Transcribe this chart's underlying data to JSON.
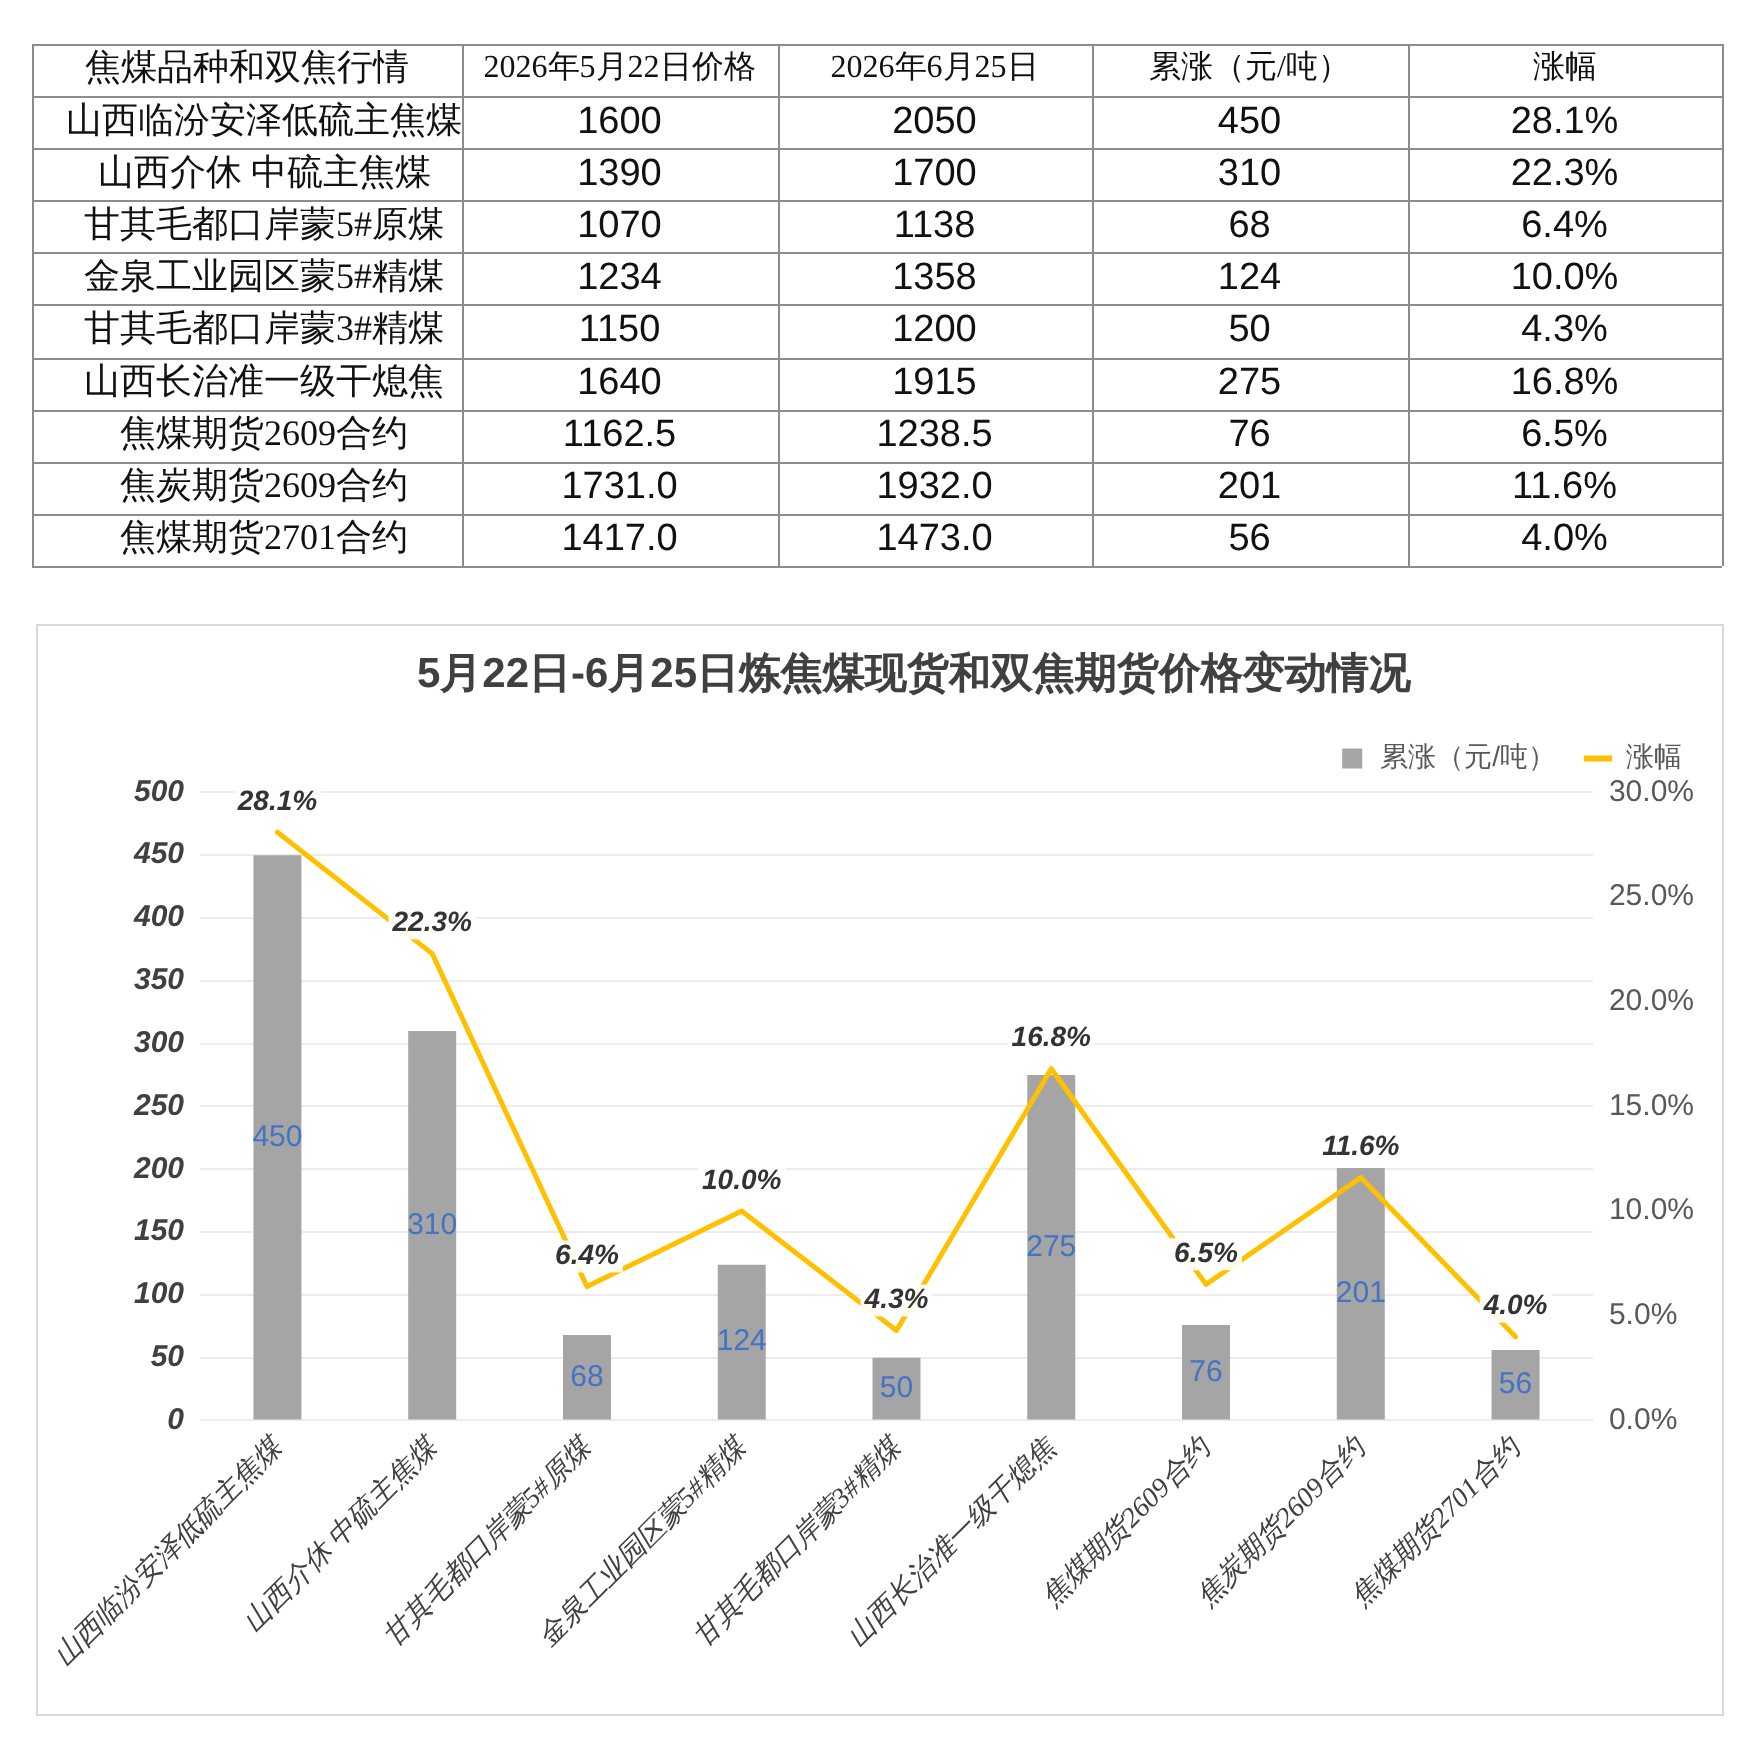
{
  "chart_data": [
    {
      "type": "heatmap",
      "ylabel": "焦煤品种和双焦行情",
      "categories": [
        "2026年5月22日价格",
        "2026年6月25日",
        "累涨（元/吨）",
        "涨幅"
      ],
      "y_categories": [
        "山西临汾安泽低硫主焦煤",
        "山西介休 中硫主焦煤",
        "甘其毛都口岸蒙5#原煤",
        "金泉工业园区蒙5#精煤",
        "甘其毛都口岸蒙3#精煤",
        "山西长治准一级干熄焦",
        "焦煤期货2609合约",
        "焦炭期货2609合约",
        "焦煤期货2701合约"
      ],
      "cells": [
        [
          1600,
          2050,
          450,
          28.1
        ],
        [
          1390,
          1700,
          310,
          22.3
        ],
        [
          1070,
          1138,
          68,
          6.4
        ],
        [
          1234,
          1358,
          124,
          10.0
        ],
        [
          1150,
          1200,
          50,
          4.3
        ],
        [
          1640,
          1915,
          275,
          16.8
        ],
        [
          1162.5,
          1238.5,
          76,
          6.5
        ],
        [
          1731.0,
          1932.0,
          201,
          11.6
        ],
        [
          1417.0,
          1473.0,
          56,
          4.0
        ]
      ],
      "cell_labels": [
        [
          "1600",
          "2050",
          "450",
          "28.1%"
        ],
        [
          "1390",
          "1700",
          "310",
          "22.3%"
        ],
        [
          "1070",
          "1138",
          "68",
          "6.4%"
        ],
        [
          "1234",
          "1358",
          "124",
          "10.0%"
        ],
        [
          "1150",
          "1200",
          "50",
          "4.3%"
        ],
        [
          "1640",
          "1915",
          "275",
          "16.8%"
        ],
        [
          "1162.5",
          "1238.5",
          "76",
          "6.5%"
        ],
        [
          "1731.0",
          "1932.0",
          "201",
          "11.6%"
        ],
        [
          "1417.0",
          "1473.0",
          "56",
          "4.0%"
        ]
      ]
    },
    {
      "type": "bar",
      "title": "5月22日-6月25日炼焦煤现货和双焦期货价格变动情况",
      "categories": [
        "山西临汾安泽低硫主焦煤",
        "山西介休 中硫主焦煤",
        "甘其毛都口岸蒙5#原煤",
        "金泉工业园区蒙5#精煤",
        "甘其毛都口岸蒙3#精煤",
        "山西长治准一级干熄焦",
        "焦煤期货2609合约",
        "焦炭期货2609合约",
        "焦煤期货2701合约"
      ],
      "series": [
        {
          "name": "累涨（元/吨）",
          "type": "bar",
          "color": "#a5a5a5",
          "values": [
            450,
            310,
            68,
            124,
            50,
            275,
            76,
            201,
            56
          ],
          "value_labels": [
            "450",
            "310",
            "68",
            "124",
            "50",
            "275",
            "76",
            "201",
            "56"
          ]
        },
        {
          "name": "涨幅",
          "type": "line",
          "axis": "y2",
          "color": "#ffc000",
          "values": [
            28.1,
            22.3,
            6.4,
            10.0,
            4.3,
            16.8,
            6.5,
            11.6,
            4.0
          ],
          "value_labels": [
            "28.1%",
            "22.3%",
            "6.4%",
            "10.0%",
            "4.3%",
            "16.8%",
            "6.5%",
            "11.6%",
            "4.0%"
          ]
        }
      ],
      "ylim": [
        0,
        500
      ],
      "yticks": [
        0,
        50,
        100,
        150,
        200,
        250,
        300,
        350,
        400,
        450,
        500
      ],
      "y2lim": [
        0,
        30
      ],
      "y2ticks": [
        {
          "value": 0,
          "label": "0.0%"
        },
        {
          "value": 5,
          "label": "5.0%"
        },
        {
          "value": 10,
          "label": "10.0%"
        },
        {
          "value": 15,
          "label": "15.0%"
        },
        {
          "value": 20,
          "label": "20.0%"
        },
        {
          "value": 25,
          "label": "25.0%"
        },
        {
          "value": 30,
          "label": "30.0%"
        }
      ],
      "grid": "y",
      "legend": "top right",
      "marker": "none",
      "line_style": "solid"
    }
  ]
}
